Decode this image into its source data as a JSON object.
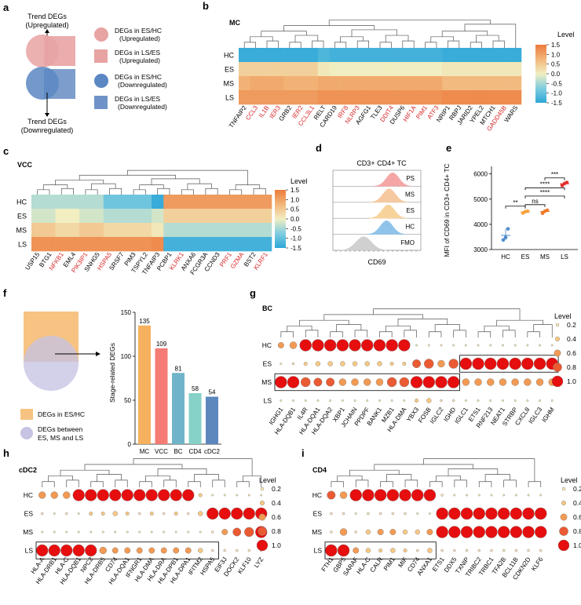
{
  "colors": {
    "heat_stops": [
      "#2ea7d8",
      "#7fcde0",
      "#f1eec1",
      "#f2b67a",
      "#ec7b3d"
    ],
    "dot_fill": [
      "#fbe7b7",
      "#f7c983",
      "#f29a53",
      "#ea5a33",
      "#e60e0e"
    ],
    "up_circle": "#e8a3a3",
    "up_square": "#e8a3a3",
    "down_circle": "#5b87c2",
    "down_square": "#6f93c8",
    "red_label": "#d62728",
    "panel_f_square": "#f6c383",
    "panel_f_circle": "#c6c3e3",
    "bars": [
      "#f6b15e",
      "#f47c74",
      "#6fb4c9",
      "#86d1c8",
      "#5d88be"
    ],
    "ridge": [
      "#f4a6a6",
      "#f7c9a0",
      "#f7d39c",
      "#8fc3ea",
      "#d0d0d0"
    ],
    "dots_e": [
      "#4c8cc9",
      "#f7a33a",
      "#f07a2a",
      "#e3322b"
    ]
  },
  "panel_a": {
    "letter": "a",
    "trend_up": [
      "Trend DEGs",
      "(Upregulated)"
    ],
    "trend_down": [
      "Trend DEGs",
      "(Downregulated)"
    ],
    "legend": [
      {
        "line1": "DEGs in ES/HC",
        "line2": "(Upregulated)",
        "shape": "circle",
        "color_key": "up_circle"
      },
      {
        "line1": "DEGs in LS/ES",
        "line2": "(Upregulated)",
        "shape": "square",
        "color_key": "up_square"
      },
      {
        "line1": "DEGs in ES/HC",
        "line2": "(Downregulated)",
        "shape": "circle",
        "color_key": "down_circle"
      },
      {
        "line1": "DEGs in LS/ES",
        "line2": "(Downregulated)",
        "shape": "square",
        "color_key": "down_square"
      }
    ]
  },
  "panel_b": {
    "letter": "b",
    "title": "MC",
    "rows": [
      "HC",
      "ES",
      "MS",
      "LS"
    ],
    "genes": [
      "TNFAIP2",
      "CCL3",
      "IL1B",
      "IER3",
      "GRB2",
      "IER2",
      "CCL3L1",
      "RELT",
      "CARD19",
      "IRF8",
      "NLRP3",
      "AGFG1",
      "TLE3",
      "DDIT4",
      "DUSP6",
      "HIF1A",
      "PIM1",
      "ATF3",
      "NRIP1",
      "RBPJ",
      "JARID2",
      "YPEL2",
      "MTCH1",
      "GADD45B",
      "WARS"
    ],
    "red_genes": [
      "CCL3",
      "IL1B",
      "IER3",
      "IER2",
      "CCL3L1",
      "IRF8",
      "NLRP3",
      "DDIT4",
      "HIF1A",
      "PIM1",
      "ATF3",
      "GADD45B"
    ],
    "values": [
      [
        -1.4,
        -1.4,
        -1.4,
        -1.4,
        -1.4,
        -1.4,
        -1.4,
        -1.2,
        -1.3,
        -1.3,
        -1.3,
        -1.3,
        -1.3,
        -1.3,
        -1.3,
        -1.3,
        -1.3,
        -1.3,
        -1.4,
        -1.4,
        -1.4,
        -1.4,
        -1.4,
        -1.4,
        -1.4
      ],
      [
        0.4,
        0.4,
        0.4,
        0.4,
        0.4,
        0.4,
        0.4,
        0.1,
        0.0,
        0.0,
        0.0,
        0.0,
        0.0,
        0.0,
        0.0,
        0.0,
        0.0,
        0.0,
        0.1,
        0.1,
        0.1,
        0.1,
        0.1,
        0.1,
        0.1
      ],
      [
        0.8,
        0.9,
        0.9,
        0.9,
        0.8,
        0.8,
        0.8,
        0.9,
        0.9,
        0.9,
        0.9,
        0.9,
        0.9,
        0.9,
        0.9,
        0.9,
        0.9,
        0.9,
        0.7,
        0.7,
        0.7,
        0.7,
        0.7,
        0.7,
        0.7
      ],
      [
        1.1,
        1.1,
        1.1,
        1.1,
        1.1,
        1.1,
        1.1,
        1.2,
        1.2,
        1.2,
        1.2,
        1.2,
        1.2,
        1.2,
        1.2,
        1.2,
        1.2,
        1.2,
        1.3,
        1.3,
        1.3,
        1.3,
        1.3,
        1.3,
        1.3
      ]
    ],
    "legend_title": "Level",
    "legend_ticks": [
      "1.5",
      "1.0",
      "0.5",
      "0.0",
      "-0.5",
      "-1.0",
      "-1.5"
    ]
  },
  "panel_c": {
    "letter": "c",
    "title": "VCC",
    "rows": [
      "HC",
      "ES",
      "MS",
      "LS"
    ],
    "genes": [
      "USP15",
      "BTG1",
      "NFKB1",
      "EML4",
      "PIK3IP1",
      "SNHG5",
      "HSPA5",
      "SRSF7",
      "PIM3",
      "TSPYL2",
      "TNFAIP3",
      "PCBP1",
      "KLRK1",
      "ANXA6",
      "FCGR3A",
      "CCND3",
      "PRF1",
      "GZMA",
      "BST2",
      "KLRF1"
    ],
    "red_genes": [
      "NFKB1",
      "PIK3IP1",
      "HSPA5",
      "KLRK1",
      "PRF1",
      "GZMA",
      "KLRF1"
    ],
    "values": [
      [
        -0.4,
        -0.4,
        -0.4,
        -0.4,
        -0.4,
        -0.4,
        -0.9,
        -0.9,
        -0.9,
        -0.9,
        -1.4,
        1.1,
        1.1,
        1.1,
        1.1,
        1.1,
        1.1,
        1.1,
        1.1,
        1.1
      ],
      [
        -0.2,
        -0.2,
        0.0,
        0.0,
        -0.2,
        -0.2,
        -0.4,
        -0.4,
        -0.4,
        -0.4,
        -0.2,
        0.4,
        0.4,
        0.4,
        0.4,
        0.4,
        0.4,
        0.4,
        0.4,
        0.4
      ],
      [
        0.5,
        0.5,
        0.3,
        0.3,
        0.5,
        0.5,
        0.3,
        0.3,
        0.3,
        0.3,
        0.1,
        -0.4,
        -0.4,
        -0.4,
        -0.4,
        -0.4,
        -0.4,
        -0.4,
        -0.4,
        -0.4
      ],
      [
        1.2,
        1.2,
        1.2,
        1.2,
        1.2,
        1.2,
        1.2,
        1.2,
        1.2,
        1.2,
        1.3,
        -1.3,
        -1.3,
        -1.3,
        -1.3,
        -1.3,
        -1.3,
        -1.3,
        -1.3,
        -1.3
      ]
    ],
    "legend_title": "Level",
    "legend_ticks": [
      "1.5",
      "1.0",
      "0.5",
      "0.0",
      "-0.5",
      "-1.0",
      "-1.5"
    ]
  },
  "panel_d": {
    "letter": "d",
    "title": "CD3+ CD4+ TC",
    "tracks": [
      "PS",
      "MS",
      "ES",
      "HC",
      "FMO"
    ],
    "xlabel": "CD69"
  },
  "panel_e": {
    "letter": "e",
    "ylabel": "MFI of CD69 in CD3+ CD4+ TC",
    "categories": [
      "HC",
      "ES",
      "MS",
      "LS"
    ],
    "yticks": [
      "3000",
      "4000",
      "5000",
      "6000"
    ],
    "ylim": [
      3000,
      6300
    ],
    "points": [
      [
        3380,
        3480,
        3820
      ],
      [
        4450,
        4500,
        4520
      ],
      [
        4440,
        4520,
        4560
      ],
      [
        5540,
        5620,
        5660
      ]
    ],
    "means": [
      3560,
      4490,
      4510,
      5610
    ],
    "sig": [
      {
        "label": "**",
        "from": 0,
        "to": 1,
        "y": 4720
      },
      {
        "label": "ns",
        "from": 1,
        "to": 2,
        "y": 4780
      },
      {
        "label": "****",
        "from": 1,
        "to": 3,
        "y": 5120
      },
      {
        "label": "****",
        "from": 1,
        "to": 3,
        "y": 5450
      },
      {
        "label": "***",
        "from": 2,
        "to": 3,
        "y": 5840
      }
    ]
  },
  "panel_f": {
    "letter": "f",
    "legend": [
      "DEGs in ES/HC",
      "DEGs between",
      "ES, MS and LS"
    ],
    "chart_data": {
      "type": "bar",
      "categories": [
        "MC",
        "VCC",
        "BC",
        "CD4",
        "cDC2"
      ],
      "values": [
        135,
        109,
        81,
        58,
        54
      ],
      "ylabel": "Stage-related DEGs",
      "ylim": [
        0,
        150
      ],
      "yticks": [
        "0",
        "50",
        "100",
        "150"
      ]
    }
  },
  "panel_g": {
    "letter": "g",
    "title": "BC",
    "rows": [
      "HC",
      "ES",
      "MS",
      "LS"
    ],
    "genes": [
      "IGHG1",
      "HLA-DQB1",
      "IL4R",
      "HLA-DQA1",
      "HLA-DQA2",
      "XBP1",
      "JCHAIN",
      "PPDPF",
      "BANK1",
      "MZB1",
      "HLA-DMA",
      "YBX3",
      "FOSB",
      "IGLC2",
      "IGHD",
      "IGLC1",
      "ETS1",
      "RNF213",
      "NEAT1",
      "STRBP",
      "CXCL8",
      "IGLC3",
      "IGHM"
    ],
    "levels": [
      [
        0.5,
        0.6,
        1,
        1,
        1,
        1,
        1,
        1,
        1,
        1,
        1,
        0.1,
        0.1,
        0.1,
        0.1,
        0.1,
        0.1,
        0.1,
        0.1,
        0.1,
        0.1,
        0.1,
        0.1
      ],
      [
        0.1,
        0.2,
        0.3,
        0.4,
        0.4,
        0.4,
        0.4,
        0.4,
        0.4,
        0.3,
        0.3,
        0.7,
        0.8,
        0.6,
        0.8,
        1,
        1,
        1,
        1,
        1,
        1,
        1,
        1
      ],
      [
        1,
        1,
        0.8,
        0.7,
        0.7,
        0.6,
        0.6,
        0.6,
        0.6,
        0.8,
        0.8,
        1,
        1,
        1,
        1,
        0.6,
        0.6,
        0.6,
        0.6,
        0.6,
        0.6,
        0.6,
        0.6
      ],
      [
        0.1,
        0.1,
        0.1,
        0.1,
        0.1,
        0.1,
        0.1,
        0.1,
        0.1,
        0.1,
        0.1,
        0.3,
        0.4,
        0.2,
        0.2,
        0.1,
        0.1,
        0.1,
        0.1,
        0.1,
        0.1,
        0.1,
        0.1
      ]
    ],
    "legend_title": "Level",
    "legend_vals": [
      "0.2",
      "0.4",
      "0.6",
      "0.8",
      "1.0"
    ]
  },
  "panel_h": {
    "letter": "h",
    "title": "cDC2",
    "rows": [
      "HC",
      "ES",
      "MS",
      "LS"
    ],
    "genes": [
      "HLA-A",
      "HLA-DRB1",
      "HLA-C",
      "HLA-DQB1",
      "NPC2",
      "HLA-DRB5",
      "CD74",
      "HLA-DQA1",
      "IFNGR1",
      "HLA-DMA",
      "HLA-DRA",
      "HLA-DPB1",
      "HLA-DPA1",
      "IFITM2",
      "HSPA5",
      "EIF3J",
      "DOCK2",
      "KLF10",
      "LYZ"
    ],
    "levels": [
      [
        0.6,
        0.6,
        0.6,
        1,
        1,
        1,
        1,
        1,
        1,
        1,
        1,
        1,
        1,
        0.3,
        0.1,
        0.1,
        0.1,
        0.1,
        0.1
      ],
      [
        0.2,
        0.1,
        0.2,
        0.1,
        0.3,
        0.3,
        0.4,
        0.3,
        0.2,
        0.3,
        0.2,
        0.3,
        0.2,
        0.4,
        1,
        1,
        1,
        1,
        1
      ],
      [
        0.1,
        0.1,
        0.1,
        0.1,
        0.1,
        0.1,
        0.1,
        0.1,
        0.1,
        0.1,
        0.1,
        0.1,
        0.1,
        0.1,
        0.2,
        0.5,
        0.7,
        0.8,
        1
      ],
      [
        1,
        1,
        1,
        1,
        1,
        0.6,
        0.5,
        0.5,
        0.5,
        0.5,
        0.5,
        0.5,
        0.5,
        0.4,
        0.2,
        0.2,
        0.2,
        0.2,
        0.2
      ]
    ],
    "legend_title": "Level",
    "legend_vals": [
      "0.2",
      "0.4",
      "0.6",
      "0.8",
      "1.0"
    ]
  },
  "panel_i": {
    "letter": "i",
    "title": "CD4",
    "rows": [
      "HC",
      "ES",
      "MS",
      "LS"
    ],
    "genes": [
      "FTH1",
      "GBP5",
      "SARAF",
      "HLA-C",
      "CALR",
      "PIM1",
      "MIF",
      "CD74",
      "ANXA1",
      "ETS1",
      "DDX5",
      "TXNIP",
      "TRIBC2",
      "TRBC1",
      "TFA2B",
      "BCL11B",
      "CDKN2D",
      "KLF6"
    ],
    "levels": [
      [
        0.7,
        0.6,
        1,
        1,
        1,
        1,
        1,
        1,
        1,
        0.2,
        0.1,
        0.1,
        0.1,
        0.1,
        0.1,
        0.1,
        0.1,
        0.1
      ],
      [
        0.2,
        0.2,
        0.1,
        0.2,
        0.2,
        0.2,
        0.2,
        0.1,
        0.1,
        1,
        1,
        1,
        1,
        1,
        1,
        1,
        1,
        1
      ],
      [
        0.2,
        0.6,
        0.2,
        0.4,
        0.5,
        0.5,
        0.4,
        0.4,
        0.5,
        1,
        1,
        1,
        1,
        1,
        1,
        1,
        1,
        1
      ],
      [
        1,
        1,
        0.5,
        0.4,
        0.3,
        0.4,
        0.3,
        0.2,
        0.4,
        0.2,
        0.2,
        0.2,
        0.2,
        0.2,
        0.2,
        0.2,
        0.2,
        0.2
      ]
    ],
    "legend_title": "Level",
    "legend_vals": [
      "0.2",
      "0.4",
      "0.6",
      "0.8",
      "1.0"
    ]
  }
}
